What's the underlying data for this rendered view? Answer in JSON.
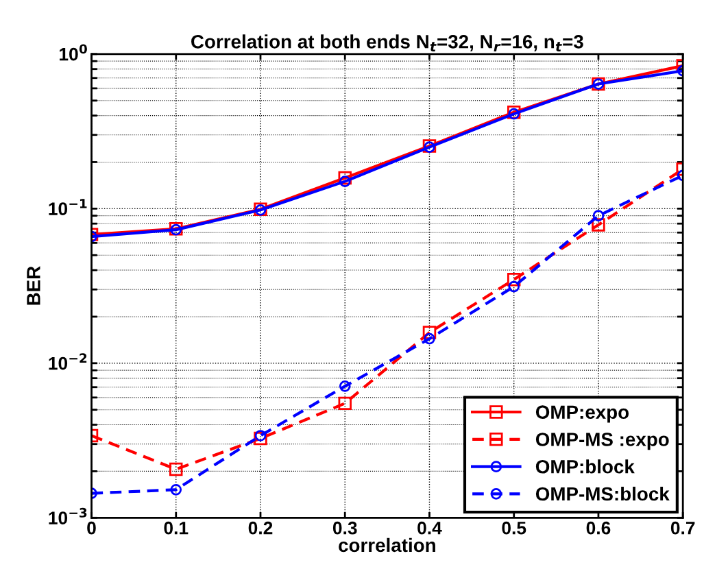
{
  "chart_data": {
    "type": "line",
    "title": "Correlation at both ends N$_{t}$=32, N$_{r}$=16, n$_{t}$=3",
    "xlabel": "correlation",
    "ylabel": "BER",
    "x": [
      0,
      0.1,
      0.2,
      0.3,
      0.4,
      0.5,
      0.6,
      0.7
    ],
    "series": [
      {
        "name": "OMP:expo",
        "color": "#ff0000",
        "marker": "square",
        "line_style": "solid",
        "values": [
          0.068,
          0.074,
          0.099,
          0.158,
          0.254,
          0.42,
          0.64,
          0.84
        ]
      },
      {
        "name": "OMP-MS :expo",
        "color": "#ff0000",
        "marker": "square",
        "line_style": "dashed",
        "values": [
          0.0034,
          0.00206,
          0.00326,
          0.0055,
          0.0158,
          0.0348,
          0.0786,
          0.18
        ]
      },
      {
        "name": "OMP:block",
        "color": "#0000ff",
        "marker": "circle",
        "line_style": "solid",
        "values": [
          0.066,
          0.073,
          0.098,
          0.15,
          0.25,
          0.41,
          0.64,
          0.78
        ]
      },
      {
        "name": "OMP-MS:block",
        "color": "#0000ff",
        "marker": "circle",
        "line_style": "dashed",
        "values": [
          0.00144,
          0.00152,
          0.0034,
          0.0071,
          0.0144,
          0.0313,
          0.09,
          0.164
        ]
      }
    ],
    "log": "y",
    "xlim": [
      0,
      0.7
    ],
    "ylim": [
      0.001,
      1
    ],
    "xticks": [
      0,
      0.1,
      0.2,
      0.3,
      0.4,
      0.5,
      0.6,
      0.7
    ],
    "yticks": [
      {
        "value": 0.001,
        "label": "10$^{−3}$"
      },
      {
        "value": 0.01,
        "label": "10$^{−2}$"
      },
      {
        "value": 0.1,
        "label": "10$^{−1}$"
      },
      {
        "value": 1,
        "label": "10$^{0}$"
      }
    ],
    "grid": true,
    "legend": "bottom right"
  }
}
